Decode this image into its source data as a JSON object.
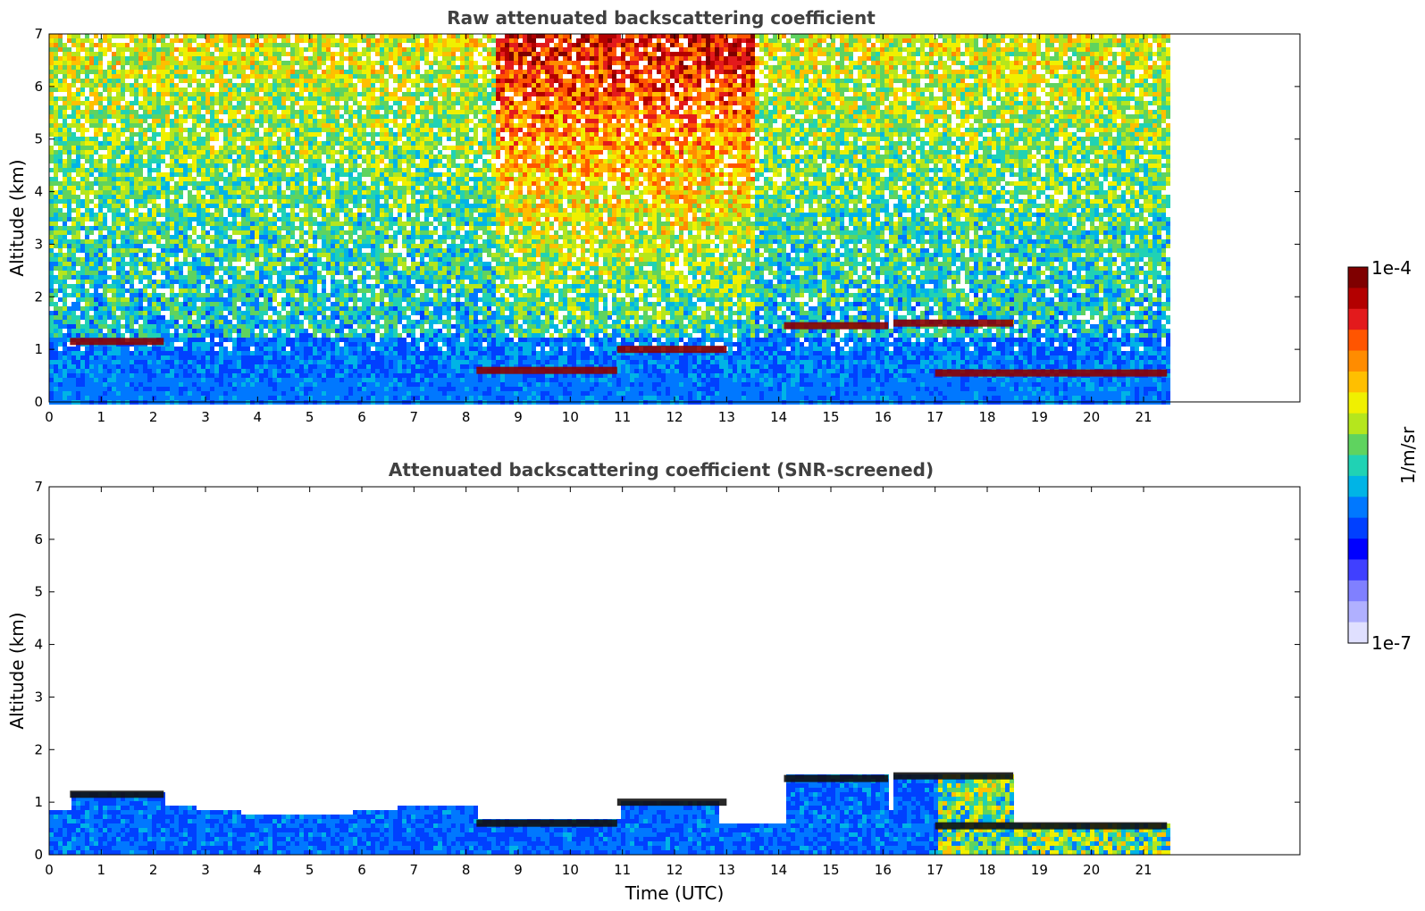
{
  "chart_data": [
    {
      "type": "heatmap",
      "title": "Raw attenuated backscattering coefficient",
      "xlabel": "",
      "ylabel": "Altitude (km)",
      "xlim": [
        0,
        24
      ],
      "ylim": [
        0,
        7
      ],
      "data_xmax": 21.45,
      "xticks": [
        "0",
        "1",
        "2",
        "3",
        "4",
        "5",
        "6",
        "7",
        "8",
        "9",
        "10",
        "11",
        "12",
        "13",
        "14",
        "15",
        "16",
        "17",
        "18",
        "19",
        "20",
        "21"
      ],
      "yticks": [
        "0",
        "1",
        "2",
        "3",
        "4",
        "5",
        "6",
        "7"
      ],
      "mode": "raw",
      "cloud_layers": [
        {
          "x_start": 0.4,
          "x_end": 2.2,
          "altitude_km": 1.15
        },
        {
          "x_start": 8.2,
          "x_end": 10.9,
          "altitude_km": 0.6
        },
        {
          "x_start": 10.9,
          "x_end": 13.0,
          "altitude_km": 1.0
        },
        {
          "x_start": 14.1,
          "x_end": 16.1,
          "altitude_km": 1.45
        },
        {
          "x_start": 16.2,
          "x_end": 18.5,
          "altitude_km": 1.5
        },
        {
          "x_start": 17.0,
          "x_end": 21.45,
          "altitude_km": 0.55
        }
      ]
    },
    {
      "type": "heatmap",
      "title": "Attenuated backscattering coefficient (SNR-screened)",
      "xlabel": "Time (UTC)",
      "ylabel": "Altitude (km)",
      "xlim": [
        0,
        24
      ],
      "ylim": [
        0,
        7
      ],
      "data_xmax": 21.45,
      "xticks": [
        "0",
        "1",
        "2",
        "3",
        "4",
        "5",
        "6",
        "7",
        "8",
        "9",
        "10",
        "11",
        "12",
        "13",
        "14",
        "15",
        "16",
        "17",
        "18",
        "19",
        "20",
        "21"
      ],
      "yticks": [
        "0",
        "1",
        "2",
        "3",
        "4",
        "5",
        "6",
        "7"
      ],
      "mode": "screened",
      "cloud_layers": [
        {
          "x_start": 0.4,
          "x_end": 2.2,
          "altitude_km": 1.15
        },
        {
          "x_start": 8.2,
          "x_end": 10.9,
          "altitude_km": 0.6
        },
        {
          "x_start": 10.9,
          "x_end": 13.0,
          "altitude_km": 1.0
        },
        {
          "x_start": 14.1,
          "x_end": 16.1,
          "altitude_km": 1.45
        },
        {
          "x_start": 16.2,
          "x_end": 18.5,
          "altitude_km": 1.5
        },
        {
          "x_start": 17.0,
          "x_end": 21.45,
          "altitude_km": 0.55
        }
      ]
    }
  ],
  "colorbar": {
    "label": "1/m/sr",
    "max_label": "1e-4",
    "min_label": "1e-7",
    "colors": [
      "#7f0000",
      "#b30000",
      "#e31a1c",
      "#ff5500",
      "#ff8c00",
      "#ffbf00",
      "#f0f000",
      "#b5e61d",
      "#5fd35f",
      "#20d2b4",
      "#00b4e6",
      "#0078ff",
      "#0040ff",
      "#0000ff",
      "#4040ff",
      "#8080ff",
      "#b0b0ff",
      "#e0e0ff"
    ]
  }
}
